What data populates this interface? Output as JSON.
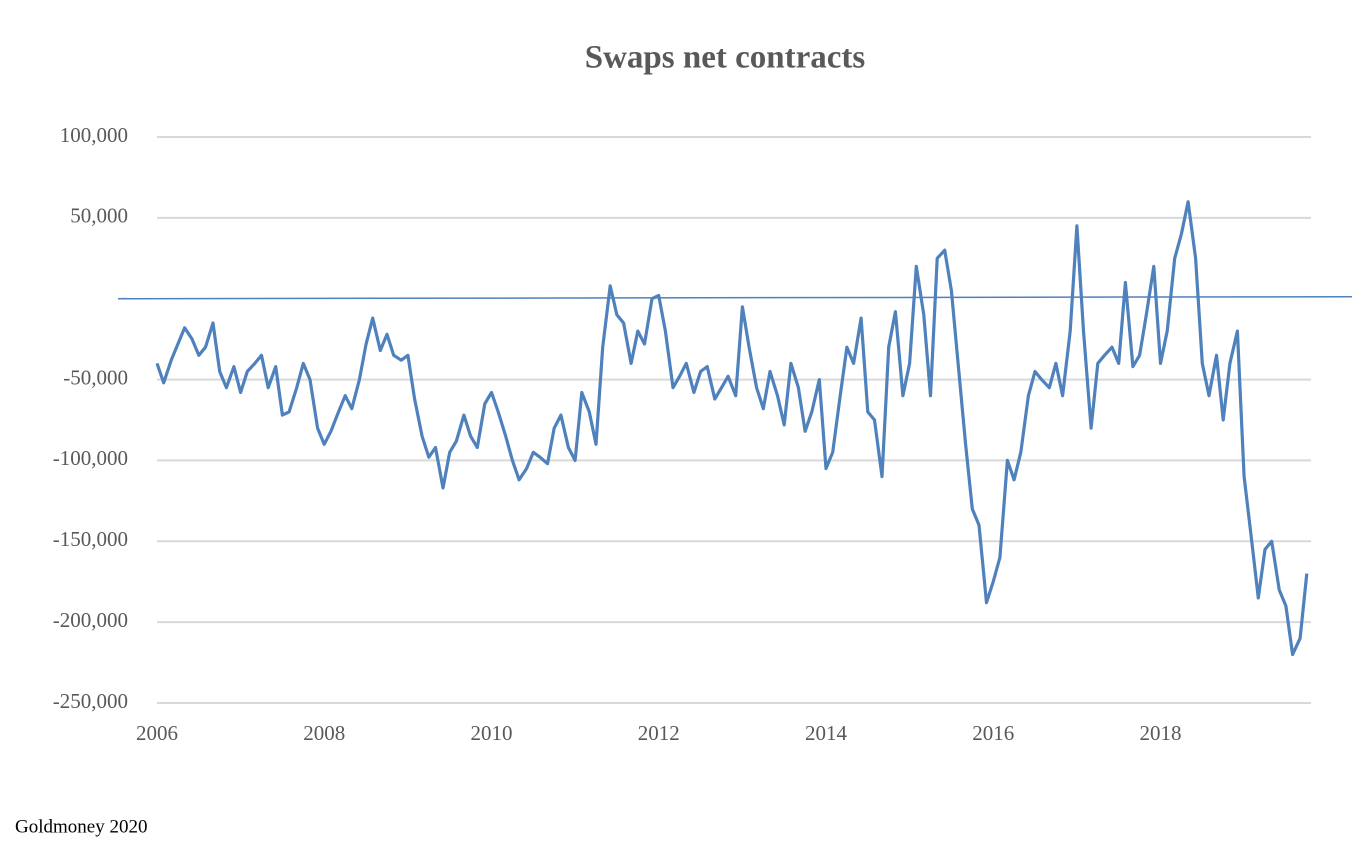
{
  "chart_data": {
    "type": "line",
    "title": "Swaps net  contracts",
    "source": "Goldmoney 2020",
    "xlim": [
      2006,
      2019.8
    ],
    "xticks": [
      2006,
      2008,
      2010,
      2012,
      2014,
      2016,
      2018
    ],
    "ylim": [
      -250000,
      100000
    ],
    "yticks": [
      {
        "value": -250000,
        "label": "-250,000"
      },
      {
        "value": -200000,
        "label": "-200,000"
      },
      {
        "value": -150000,
        "label": "-150,000"
      },
      {
        "value": -100000,
        "label": "-100,000"
      },
      {
        "value": -50000,
        "label": "-50,000"
      },
      {
        "value": 0,
        "label": "-"
      },
      {
        "value": 50000,
        "label": "50,000"
      },
      {
        "value": 100000,
        "label": "100,000"
      }
    ],
    "grid": true,
    "series": [
      {
        "name": "Swaps net contracts",
        "color": "#4f81bd",
        "x": [
          2006.0,
          2006.08,
          2006.17,
          2006.25,
          2006.33,
          2006.42,
          2006.5,
          2006.58,
          2006.67,
          2006.75,
          2006.83,
          2006.92,
          2007.0,
          2007.08,
          2007.17,
          2007.25,
          2007.33,
          2007.42,
          2007.5,
          2007.58,
          2007.67,
          2007.75,
          2007.83,
          2007.92,
          2008.0,
          2008.08,
          2008.17,
          2008.25,
          2008.33,
          2008.42,
          2008.5,
          2008.58,
          2008.67,
          2008.75,
          2008.83,
          2008.92,
          2009.0,
          2009.08,
          2009.17,
          2009.25,
          2009.33,
          2009.42,
          2009.5,
          2009.58,
          2009.67,
          2009.75,
          2009.83,
          2009.92,
          2010.0,
          2010.08,
          2010.17,
          2010.25,
          2010.33,
          2010.42,
          2010.5,
          2010.58,
          2010.67,
          2010.75,
          2010.83,
          2010.92,
          2011.0,
          2011.08,
          2011.17,
          2011.25,
          2011.33,
          2011.42,
          2011.5,
          2011.58,
          2011.67,
          2011.75,
          2011.83,
          2011.92,
          2012.0,
          2012.08,
          2012.17,
          2012.25,
          2012.33,
          2012.42,
          2012.5,
          2012.58,
          2012.67,
          2012.75,
          2012.83,
          2012.92,
          2013.0,
          2013.08,
          2013.17,
          2013.25,
          2013.33,
          2013.42,
          2013.5,
          2013.58,
          2013.67,
          2013.75,
          2013.83,
          2013.92,
          2014.0,
          2014.08,
          2014.17,
          2014.25,
          2014.33,
          2014.42,
          2014.5,
          2014.58,
          2014.67,
          2014.75,
          2014.83,
          2014.92,
          2015.0,
          2015.08,
          2015.17,
          2015.25,
          2015.33,
          2015.42,
          2015.5,
          2015.58,
          2015.67,
          2015.75,
          2015.83,
          2015.92,
          2016.0,
          2016.08,
          2016.17,
          2016.25,
          2016.33,
          2016.42,
          2016.5,
          2016.58,
          2016.67,
          2016.75,
          2016.83,
          2016.92,
          2017.0,
          2017.08,
          2017.17,
          2017.25,
          2017.33,
          2017.42,
          2017.5,
          2017.58,
          2017.67,
          2017.75,
          2017.83,
          2017.92,
          2018.0,
          2018.08,
          2018.17,
          2018.25,
          2018.33,
          2018.42,
          2018.5,
          2018.58,
          2018.67,
          2018.75,
          2018.83,
          2018.92,
          2019.0,
          2019.08,
          2019.17,
          2019.25,
          2019.33,
          2019.42,
          2019.5,
          2019.58,
          2019.67,
          2019.75
        ],
        "values": [
          -40000,
          -52000,
          -38000,
          -28000,
          -18000,
          -25000,
          -35000,
          -30000,
          -15000,
          -45000,
          -55000,
          -42000,
          -58000,
          -45000,
          -40000,
          -35000,
          -55000,
          -42000,
          -72000,
          -70000,
          -55000,
          -40000,
          -50000,
          -80000,
          -90000,
          -82000,
          -70000,
          -60000,
          -68000,
          -50000,
          -28000,
          -12000,
          -32000,
          -22000,
          -35000,
          -38000,
          -35000,
          -62000,
          -85000,
          -98000,
          -92000,
          -117000,
          -95000,
          -88000,
          -72000,
          -85000,
          -92000,
          -65000,
          -58000,
          -70000,
          -85000,
          -100000,
          -112000,
          -105000,
          -95000,
          -98000,
          -102000,
          -80000,
          -72000,
          -92000,
          -100000,
          -58000,
          -70000,
          -90000,
          -30000,
          8000,
          -10000,
          -15000,
          -40000,
          -20000,
          -28000,
          0,
          2000,
          -20000,
          -55000,
          -48000,
          -40000,
          -58000,
          -45000,
          -42000,
          -62000,
          -55000,
          -48000,
          -60000,
          -5000,
          -30000,
          -55000,
          -68000,
          -45000,
          -60000,
          -78000,
          -40000,
          -55000,
          -82000,
          -70000,
          -50000,
          -105000,
          -95000,
          -60000,
          -30000,
          -40000,
          -12000,
          -70000,
          -75000,
          -110000,
          -30000,
          -8000,
          -60000,
          -40000,
          20000,
          -10000,
          -60000,
          25000,
          30000,
          5000,
          -40000,
          -90000,
          -130000,
          -140000,
          -188000,
          -175000,
          -160000,
          -100000,
          -112000,
          -95000,
          -60000,
          -45000,
          -50000,
          -55000,
          -40000,
          -60000,
          -20000,
          45000,
          -20000,
          -80000,
          -40000,
          -35000,
          -30000,
          -40000,
          10000,
          -42000,
          -35000,
          -10000,
          20000,
          -40000,
          -20000,
          25000,
          40000,
          60000,
          25000,
          -40000,
          -60000,
          -35000,
          -75000,
          -40000,
          -20000,
          -110000,
          -145000,
          -185000,
          -155000,
          -150000,
          -180000,
          -190000,
          -220000,
          -210000,
          -170000
        ]
      }
    ]
  }
}
